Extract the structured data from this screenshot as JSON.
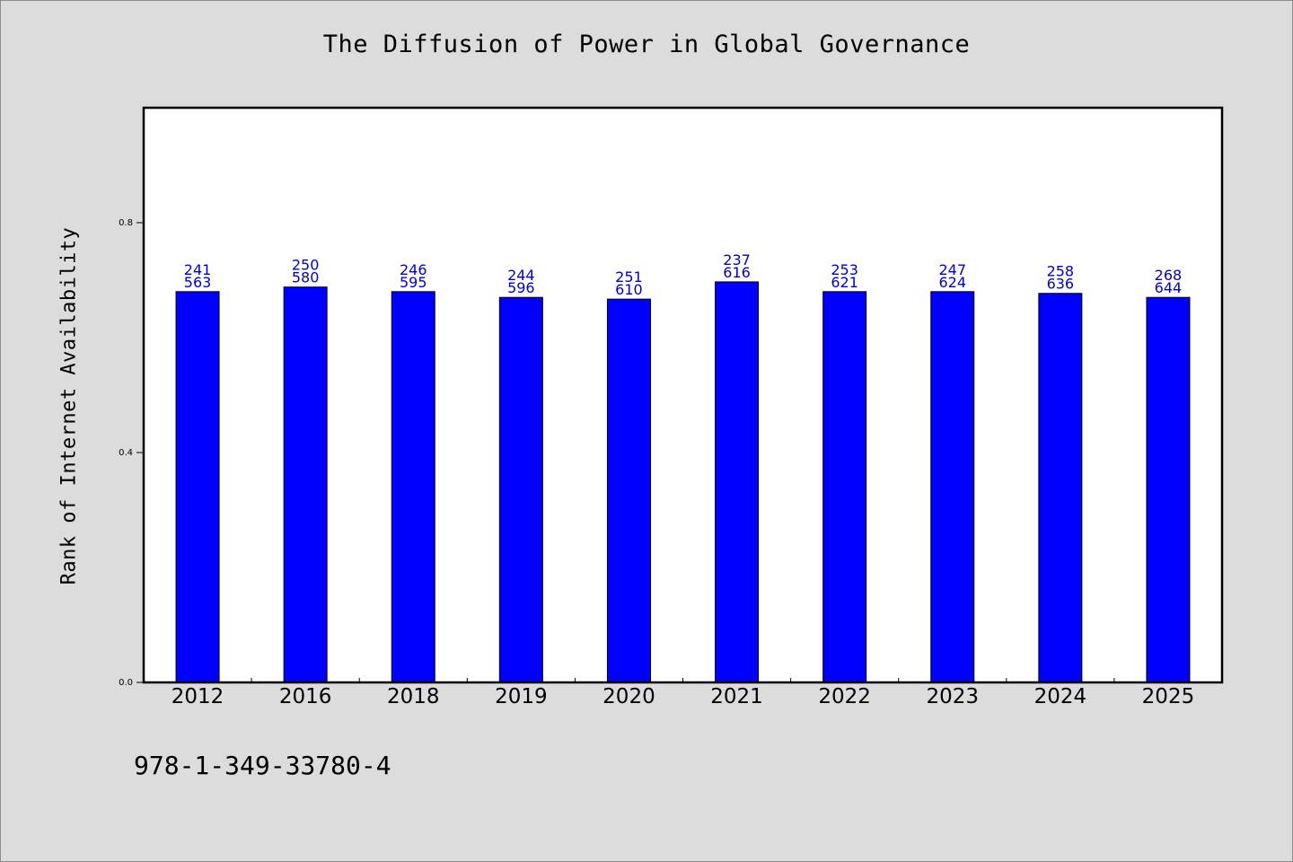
{
  "chart_data": {
    "type": "bar",
    "title": "The Diffusion of Power in Global Governance",
    "xlabel": "",
    "ylabel": "Rank of Internet Availability",
    "ylim": [
      0,
      1.0
    ],
    "yticks": [
      0.0,
      0.4,
      0.8
    ],
    "ytick_labels": [
      "0.0",
      "0.4",
      "0.8"
    ],
    "grid": false,
    "legend": "none",
    "bar_color": "#0000ff",
    "label_color": "#0000c8",
    "categories": [
      "2012",
      "2016",
      "2018",
      "2019",
      "2020",
      "2021",
      "2022",
      "2023",
      "2024",
      "2025"
    ],
    "values": [
      0.68,
      0.688,
      0.68,
      0.67,
      0.667,
      0.697,
      0.68,
      0.68,
      0.677,
      0.67
    ],
    "data_labels": [
      [
        "241",
        "563"
      ],
      [
        "250",
        "580"
      ],
      [
        "246",
        "595"
      ],
      [
        "244",
        "596"
      ],
      [
        "251",
        "610"
      ],
      [
        "237",
        "616"
      ],
      [
        "253",
        "621"
      ],
      [
        "247",
        "624"
      ],
      [
        "258",
        "636"
      ],
      [
        "268",
        "644"
      ]
    ]
  },
  "footer": {
    "isbn": "978-1-349-33780-4"
  }
}
